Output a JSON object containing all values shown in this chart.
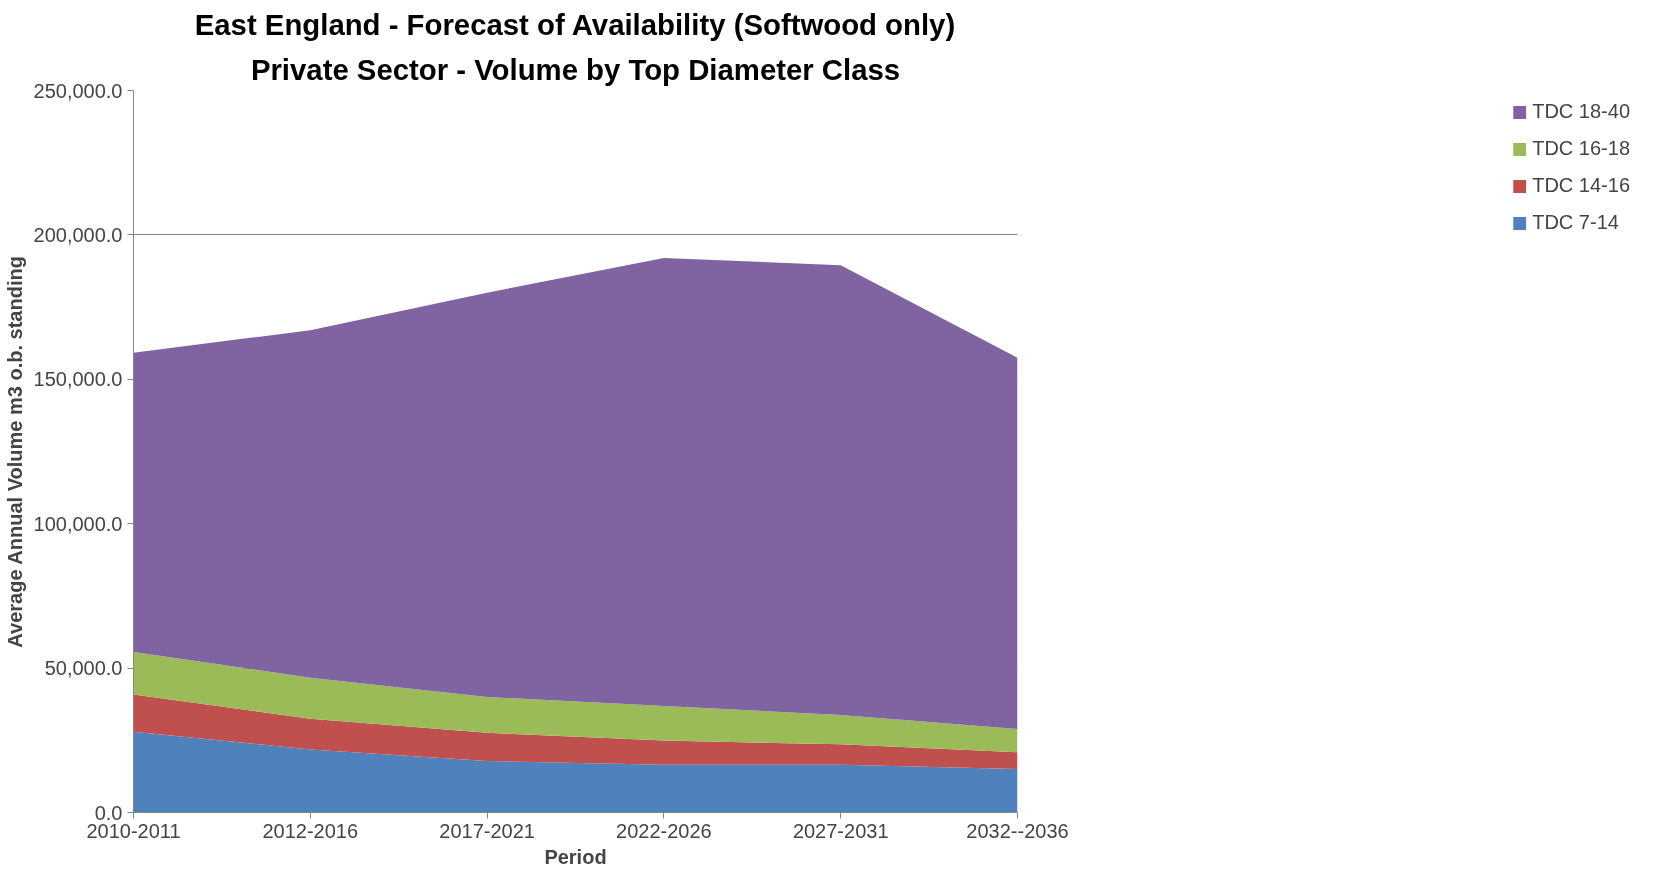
{
  "chart_data": {
    "type": "area",
    "stacked": true,
    "title": "East England - Forecast of Availability (Softwood only)",
    "subtitle": "Private Sector - Volume by Top Diameter Class",
    "xlabel": "Period",
    "ylabel": "Average Annual Volume m3 o.b. standing",
    "categories": [
      "2010-2011",
      "2012-2016",
      "2017-2021",
      "2022-2026",
      "2027-2031",
      "2032--2036"
    ],
    "series": [
      {
        "name": "TDC 7-14",
        "color": "#4f81bd",
        "values": [
          28000,
          21800,
          17800,
          16500,
          16500,
          15100
        ]
      },
      {
        "name": "TDC 14-16",
        "color": "#c0504d",
        "values": [
          12900,
          10700,
          9800,
          8400,
          7100,
          5800
        ]
      },
      {
        "name": "TDC 16-18",
        "color": "#9bbb59",
        "values": [
          14700,
          14200,
          12400,
          12000,
          10200,
          8000
        ]
      },
      {
        "name": "TDC 18-40",
        "color": "#8064a2",
        "values": [
          103600,
          120300,
          140000,
          155100,
          155700,
          128600
        ]
      }
    ],
    "ylim": [
      0,
      250000
    ],
    "yticks": [
      {
        "value": 0,
        "label": "0.0"
      },
      {
        "value": 50000,
        "label": "50,000.0"
      },
      {
        "value": 100000,
        "label": "100,000.0"
      },
      {
        "value": 150000,
        "label": "150,000.0"
      },
      {
        "value": 200000,
        "label": "200,000.0"
      },
      {
        "value": 250000,
        "label": "250,000.0"
      }
    ],
    "grid": "y",
    "legend": "right"
  }
}
